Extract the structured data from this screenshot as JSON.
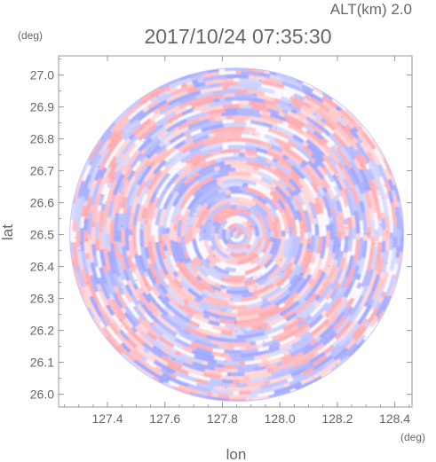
{
  "header": {
    "altitude_label": "ALT(km) 2.0",
    "timestamp": "2017/10/24 07:35:30"
  },
  "chart_data": {
    "type": "heatmap",
    "title": "2017/10/24 07:35:30",
    "xlabel": "lon",
    "ylabel": "lat",
    "x_unit": "(deg)",
    "y_unit": "(deg)",
    "xlim": [
      127.23,
      128.46
    ],
    "ylim": [
      25.96,
      27.06
    ],
    "x_ticks": [
      127.4,
      127.6,
      127.8,
      128.0,
      128.2,
      128.4
    ],
    "y_ticks": [
      26.0,
      26.1,
      26.2,
      26.3,
      26.4,
      26.5,
      26.6,
      26.7,
      26.8,
      26.9,
      27.0
    ],
    "x_tick_labels": [
      "127.4",
      "127.6",
      "127.8",
      "128.0",
      "128.2",
      "128.4"
    ],
    "y_tick_labels": [
      "26.0",
      "26.1",
      "26.2",
      "26.3",
      "26.4",
      "26.5",
      "26.6",
      "26.7",
      "26.8",
      "26.9",
      "27.0"
    ],
    "center": {
      "lon": 127.85,
      "lat": 26.5
    },
    "radius_deg": 0.55,
    "colormap": {
      "negative": "#8c96ff",
      "zero": "#ffffff",
      "positive": "#ff9aa0"
    },
    "grid": false
  }
}
